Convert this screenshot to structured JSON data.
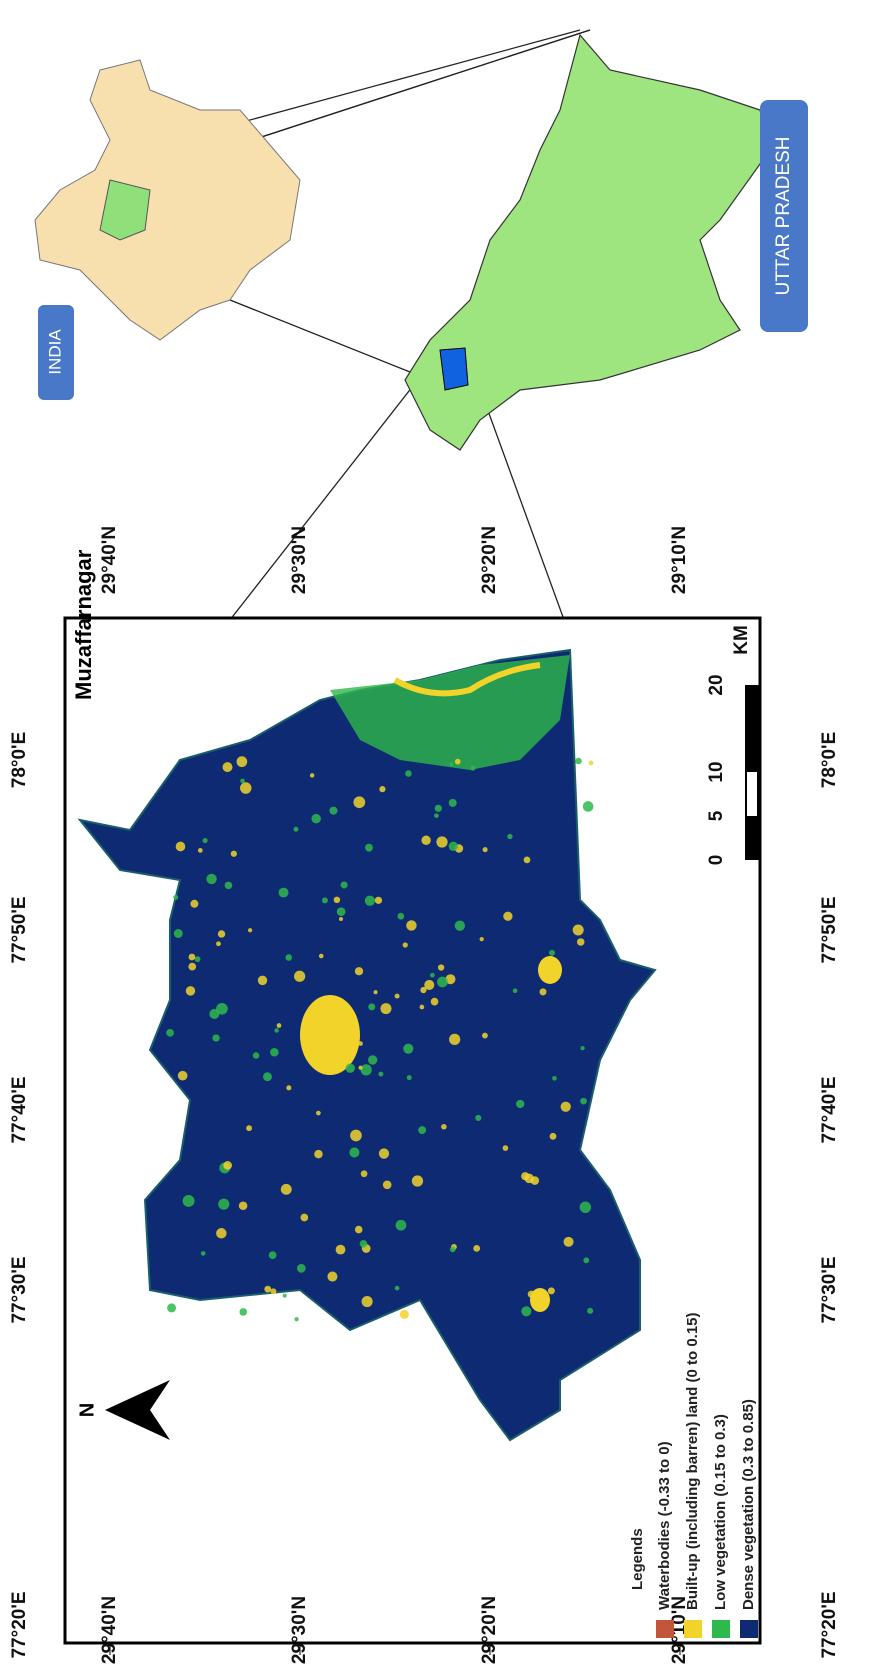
{
  "map_title": "Muzaffarnagar",
  "legend": {
    "title": "Legends",
    "items": [
      {
        "label": "Waterbodies (-0.33 to 0)",
        "color": "#c4553d"
      },
      {
        "label": "Built-up (including barren) land (0 to 0.15)",
        "color": "#f2d32a"
      },
      {
        "label": "Low vegetation (0.15 to 0.3)",
        "color": "#2fb84b"
      },
      {
        "label": "Dense vegetation (0.3 to 0.85)",
        "color": "#0d2a72"
      }
    ]
  },
  "latitudes": [
    "29°40'N",
    "29°30'N",
    "29°20'N",
    "29°10'N"
  ],
  "longitudes": [
    "77°20'E",
    "77°30'E",
    "77°40'E",
    "77°50'E",
    "78°0'E"
  ],
  "scale_bar": {
    "ticks": [
      0,
      5,
      10,
      20
    ],
    "unit": "KM"
  },
  "north_arrow": "N",
  "insets": {
    "india": "INDIA",
    "state": "UTTAR PRADESH"
  }
}
